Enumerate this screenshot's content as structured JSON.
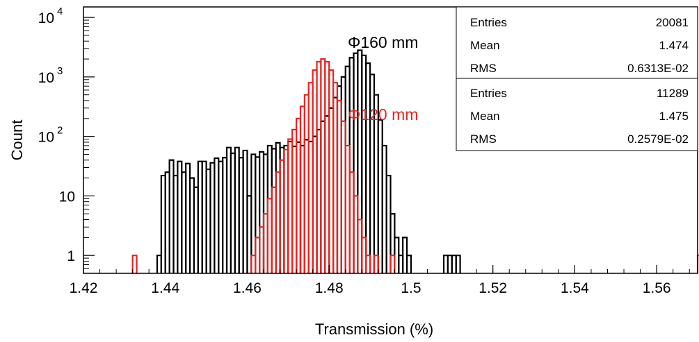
{
  "chart_data": {
    "type": "histogram",
    "title": "",
    "xlabel": "Transmission (%)",
    "ylabel": "Count",
    "xlim": [
      1.42,
      1.57
    ],
    "ylim": [
      0.5,
      15000
    ],
    "y_scale": "log",
    "grid": false,
    "bin_width": 0.001,
    "x_ticks": [
      "1.42",
      "1.44",
      "1.46",
      "1.48",
      "1.5",
      "1.52",
      "1.54",
      "1.56"
    ],
    "y_ticks": [
      {
        "base": "1",
        "exp": ""
      },
      {
        "base": "10",
        "exp": ""
      },
      {
        "base": "10",
        "exp": "2"
      },
      {
        "base": "10",
        "exp": "3"
      },
      {
        "base": "10",
        "exp": "4"
      }
    ],
    "series": [
      {
        "name": "Φ160 mm",
        "color": "#000000",
        "bins": [
          [
            1.438,
            1
          ],
          [
            1.439,
            22
          ],
          [
            1.44,
            25
          ],
          [
            1.441,
            40
          ],
          [
            1.442,
            22
          ],
          [
            1.443,
            38
          ],
          [
            1.444,
            25
          ],
          [
            1.445,
            35
          ],
          [
            1.446,
            20
          ],
          [
            1.447,
            14
          ],
          [
            1.448,
            38
          ],
          [
            1.449,
            38
          ],
          [
            1.45,
            28
          ],
          [
            1.451,
            36
          ],
          [
            1.452,
            43
          ],
          [
            1.453,
            38
          ],
          [
            1.454,
            44
          ],
          [
            1.455,
            65
          ],
          [
            1.456,
            52
          ],
          [
            1.457,
            65
          ],
          [
            1.458,
            44
          ],
          [
            1.459,
            58
          ],
          [
            1.46,
            10
          ],
          [
            1.461,
            50
          ],
          [
            1.462,
            45
          ],
          [
            1.463,
            55
          ],
          [
            1.464,
            50
          ],
          [
            1.465,
            70
          ],
          [
            1.466,
            62
          ],
          [
            1.467,
            78
          ],
          [
            1.468,
            65
          ],
          [
            1.469,
            70
          ],
          [
            1.47,
            82
          ],
          [
            1.471,
            68
          ],
          [
            1.472,
            80
          ],
          [
            1.473,
            70
          ],
          [
            1.474,
            88
          ],
          [
            1.475,
            82
          ],
          [
            1.476,
            100
          ],
          [
            1.477,
            130
          ],
          [
            1.478,
            180
          ],
          [
            1.479,
            220
          ],
          [
            1.48,
            300
          ],
          [
            1.481,
            450
          ],
          [
            1.482,
            700
          ],
          [
            1.483,
            1000
          ],
          [
            1.484,
            1500
          ],
          [
            1.485,
            2100
          ],
          [
            1.486,
            2500
          ],
          [
            1.487,
            2800
          ],
          [
            1.488,
            2300
          ],
          [
            1.489,
            1700
          ],
          [
            1.49,
            1100
          ],
          [
            1.491,
            500
          ],
          [
            1.492,
            190
          ],
          [
            1.493,
            70
          ],
          [
            1.494,
            22
          ],
          [
            1.495,
            5
          ],
          [
            1.496,
            2
          ],
          [
            1.497,
            1
          ],
          [
            1.498,
            2
          ],
          [
            1.499,
            1
          ],
          [
            1.508,
            1
          ],
          [
            1.509,
            1
          ],
          [
            1.51,
            1
          ],
          [
            1.511,
            1
          ]
        ]
      },
      {
        "name": "Φ120 mm",
        "color": "#e8231f",
        "bins": [
          [
            1.432,
            1
          ],
          [
            1.461,
            1
          ],
          [
            1.462,
            2
          ],
          [
            1.463,
            3
          ],
          [
            1.464,
            5
          ],
          [
            1.465,
            9
          ],
          [
            1.466,
            14
          ],
          [
            1.467,
            25
          ],
          [
            1.468,
            40
          ],
          [
            1.469,
            60
          ],
          [
            1.47,
            90
          ],
          [
            1.471,
            130
          ],
          [
            1.472,
            200
          ],
          [
            1.473,
            320
          ],
          [
            1.474,
            500
          ],
          [
            1.475,
            800
          ],
          [
            1.476,
            1300
          ],
          [
            1.477,
            1800
          ],
          [
            1.478,
            2000
          ],
          [
            1.479,
            1800
          ],
          [
            1.48,
            1300
          ],
          [
            1.481,
            800
          ],
          [
            1.482,
            400
          ],
          [
            1.483,
            180
          ],
          [
            1.484,
            70
          ],
          [
            1.485,
            25
          ],
          [
            1.486,
            10
          ],
          [
            1.487,
            4
          ],
          [
            1.488,
            2
          ],
          [
            1.489,
            1
          ],
          [
            1.491,
            1
          ],
          [
            1.495,
            1
          ],
          [
            1.57,
            1
          ]
        ]
      }
    ],
    "stats": [
      {
        "rows": [
          {
            "label": "Entries",
            "value": "20081"
          },
          {
            "label": "Mean",
            "value": "1.474"
          },
          {
            "label": "RMS",
            "value": "0.6313E-02"
          }
        ]
      },
      {
        "rows": [
          {
            "label": "Entries",
            "value": "11289"
          },
          {
            "label": "Mean",
            "value": "1.475"
          },
          {
            "label": "RMS",
            "value": "0.2579E-02"
          }
        ]
      }
    ]
  }
}
